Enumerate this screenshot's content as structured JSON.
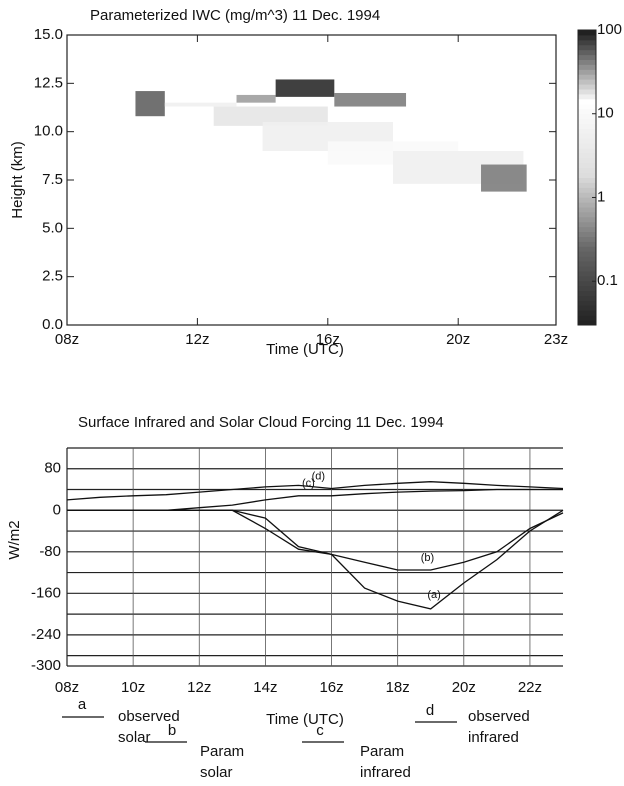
{
  "chart_data": [
    {
      "type": "heatmap",
      "title": "Parameterized IWC (mg/m^3)  11 Dec. 1994",
      "x_label": "Time (UTC)",
      "y_label": "Height (km)",
      "xlim": [
        8,
        23
      ],
      "xticks": [
        {
          "value": 8,
          "label": "08z"
        },
        {
          "value": 12,
          "label": "12z"
        },
        {
          "value": 16,
          "label": "16z"
        },
        {
          "value": 20,
          "label": "20z"
        },
        {
          "value": 23,
          "label": "23z"
        }
      ],
      "ylim": [
        0,
        15
      ],
      "yticks": [
        {
          "value": 0,
          "label": "0.0"
        },
        2.5,
        {
          "value": 5,
          "label": "5.0"
        },
        7.5,
        {
          "value": 10,
          "label": "10.0"
        },
        12.5,
        {
          "value": 15,
          "label": "15.0"
        }
      ],
      "cells": [
        {
          "x": [
            10.1,
            11.0
          ],
          "y": [
            10.8,
            12.1
          ],
          "value": 50
        },
        {
          "x": [
            11.0,
            13.2
          ],
          "y": [
            11.3,
            11.5
          ],
          "value": 5
        },
        {
          "x": [
            13.2,
            14.4
          ],
          "y": [
            11.5,
            11.9
          ],
          "value": 30
        },
        {
          "x": [
            14.4,
            16.2
          ],
          "y": [
            11.8,
            12.7
          ],
          "value": 80
        },
        {
          "x": [
            16.2,
            18.4
          ],
          "y": [
            11.3,
            12.0
          ],
          "value": 40
        },
        {
          "x": [
            12.5,
            16.0
          ],
          "y": [
            10.3,
            11.3
          ],
          "value": 3
        },
        {
          "x": [
            14.0,
            18.0
          ],
          "y": [
            9.0,
            10.5
          ],
          "value": 5
        },
        {
          "x": [
            16.0,
            20.0
          ],
          "y": [
            8.3,
            9.5
          ],
          "value": 10
        },
        {
          "x": [
            18.0,
            22.0
          ],
          "y": [
            7.3,
            9.0
          ],
          "value": 15
        },
        {
          "x": [
            20.7,
            22.1
          ],
          "y": [
            6.9,
            8.3
          ],
          "value": 40
        }
      ],
      "colorbar": {
        "scale": "log",
        "clim": [
          0.03,
          100
        ],
        "ticks": [
          0.1,
          1,
          10,
          100
        ],
        "colormap": [
          "#222222",
          "#666666",
          "#dddddd",
          "#ffffff",
          "#111111"
        ]
      }
    },
    {
      "type": "line",
      "title": "Surface Infrared and Solar Cloud Forcing 11 Dec. 1994",
      "x_label": "Time (UTC)",
      "y_label": "W/m2",
      "xlim": [
        8,
        23
      ],
      "xticks": [
        {
          "value": 8,
          "label": "08z"
        },
        {
          "value": 10,
          "label": "10z"
        },
        {
          "value": 12,
          "label": "12z"
        },
        {
          "value": 14,
          "label": "14z"
        },
        {
          "value": 16,
          "label": "16z"
        },
        {
          "value": 18,
          "label": "18z"
        },
        {
          "value": 20,
          "label": "20z"
        },
        {
          "value": 22,
          "label": "22z"
        }
      ],
      "ylim": [
        -300,
        120
      ],
      "yticks": [
        80,
        0,
        -80,
        -160,
        -240,
        -300
      ],
      "minor_yticks": [
        120,
        40,
        -40,
        -120,
        -200,
        -280
      ],
      "grid": true,
      "x": [
        8,
        9,
        10,
        11,
        12,
        13,
        14,
        15,
        16,
        17,
        18,
        19,
        20,
        21,
        22,
        23
      ],
      "series": [
        {
          "key": "a",
          "name": "observed solar",
          "label": "(a)",
          "color": "#111111",
          "values": [
            0,
            0,
            0,
            0,
            0,
            0,
            -15,
            -70,
            -85,
            -150,
            -175,
            -190,
            -140,
            -95,
            -40,
            0
          ]
        },
        {
          "key": "b",
          "name": "Param solar",
          "label": "(b)",
          "color": "#111111",
          "values": [
            0,
            0,
            0,
            0,
            0,
            0,
            -35,
            -75,
            -85,
            -100,
            -115,
            -115,
            -100,
            -80,
            -35,
            -5
          ]
        },
        {
          "key": "c",
          "name": "Param infrared",
          "label": "(c)",
          "color": "#111111",
          "values": [
            0,
            0,
            0,
            0,
            5,
            10,
            20,
            28,
            28,
            32,
            35,
            37,
            38,
            40,
            40,
            40
          ]
        },
        {
          "key": "d",
          "name": "observed infrared",
          "label": "(d)",
          "color": "#111111",
          "values": [
            20,
            25,
            28,
            30,
            35,
            40,
            45,
            48,
            42,
            48,
            52,
            55,
            52,
            48,
            45,
            42
          ]
        }
      ]
    }
  ]
}
